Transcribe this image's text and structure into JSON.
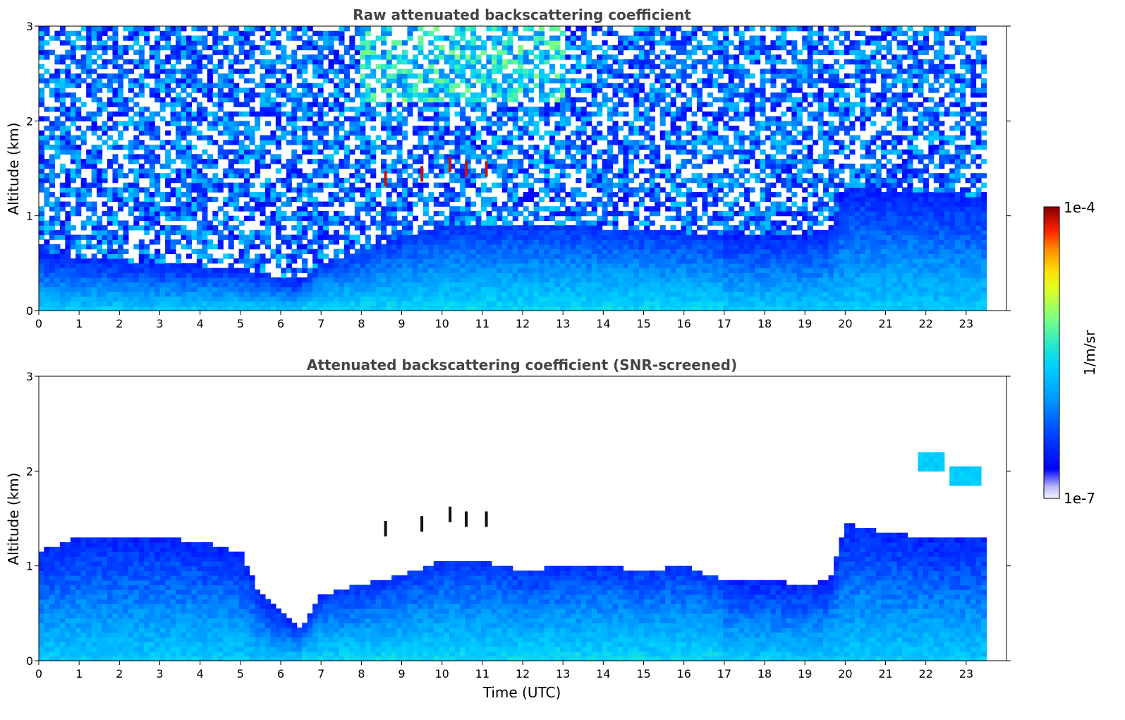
{
  "chart_data": [
    {
      "type": "heatmap",
      "title": "Raw attenuated backscattering coefficient",
      "xlabel": "",
      "ylabel": "Altitude (km)",
      "xlim": [
        0,
        24
      ],
      "ylim": [
        0,
        3
      ],
      "x_ticks": [
        "0",
        "1",
        "2",
        "3",
        "4",
        "5",
        "6",
        "7",
        "8",
        "9",
        "10",
        "11",
        "12",
        "13",
        "14",
        "15",
        "16",
        "17",
        "18",
        "19",
        "20",
        "21",
        "22",
        "23"
      ],
      "y_ticks": [
        "0",
        "1",
        "2",
        "3"
      ],
      "data_extent_hours": [
        0,
        23.5
      ],
      "screened": false,
      "features": [
        {
          "kind": "aerosol_layer_top_km",
          "hours": [
            0,
            3,
            5,
            6.5,
            7,
            10,
            13,
            17,
            19,
            19.7,
            20,
            23.5
          ],
          "top_km": [
            0.6,
            0.5,
            0.45,
            0.3,
            0.5,
            0.9,
            0.9,
            0.8,
            0.8,
            0.9,
            1.3,
            1.2
          ]
        },
        {
          "kind": "cloud_fragments",
          "hours": [
            8.6,
            9.5,
            10.2,
            10.6,
            11.1
          ],
          "altitude_km": [
            1.4,
            1.45,
            1.55,
            1.5,
            1.5
          ]
        }
      ]
    },
    {
      "type": "heatmap",
      "title": "Attenuated backscattering coefficient (SNR-screened)",
      "xlabel": "Time (UTC)",
      "ylabel": "Altitude (km)",
      "xlim": [
        0,
        24
      ],
      "ylim": [
        0,
        3
      ],
      "x_ticks": [
        "0",
        "1",
        "2",
        "3",
        "4",
        "5",
        "6",
        "7",
        "8",
        "9",
        "10",
        "11",
        "12",
        "13",
        "14",
        "15",
        "16",
        "17",
        "18",
        "19",
        "20",
        "21",
        "22",
        "23"
      ],
      "y_ticks": [
        "0",
        "1",
        "2",
        "3"
      ],
      "data_extent_hours": [
        0,
        23.5
      ],
      "screened": true,
      "features": [
        {
          "kind": "screened_layer_top_km",
          "hours": [
            0,
            1,
            2,
            3,
            4,
            5,
            5.5,
            6.5,
            7,
            8,
            9,
            10,
            11,
            12,
            13,
            14,
            15,
            16,
            17,
            18,
            19,
            19.6,
            20,
            21,
            22,
            23,
            23.4
          ],
          "top_km": [
            1.15,
            1.3,
            1.3,
            1.3,
            1.25,
            1.15,
            0.7,
            0.35,
            0.7,
            0.8,
            0.9,
            1.05,
            1.05,
            0.95,
            1.0,
            1.0,
            0.95,
            1.0,
            0.85,
            0.85,
            0.8,
            0.85,
            1.45,
            1.35,
            1.3,
            1.3,
            1.3
          ]
        },
        {
          "kind": "cloud_patches",
          "hours": [
            22.1,
            23.0
          ],
          "altitude_km": [
            2.1,
            1.95
          ]
        },
        {
          "kind": "cloud_fragments",
          "hours": [
            8.6,
            9.5,
            10.2,
            10.6,
            11.1
          ],
          "altitude_km": [
            1.4,
            1.45,
            1.55,
            1.5,
            1.5
          ]
        }
      ]
    }
  ],
  "colorbar": {
    "label": "1/m/sr",
    "max_label": "1e-4",
    "min_label": "1e-7",
    "scale": "log",
    "range": [
      1e-07,
      0.0001
    ],
    "colormap": "jet (white at lowest values)"
  }
}
